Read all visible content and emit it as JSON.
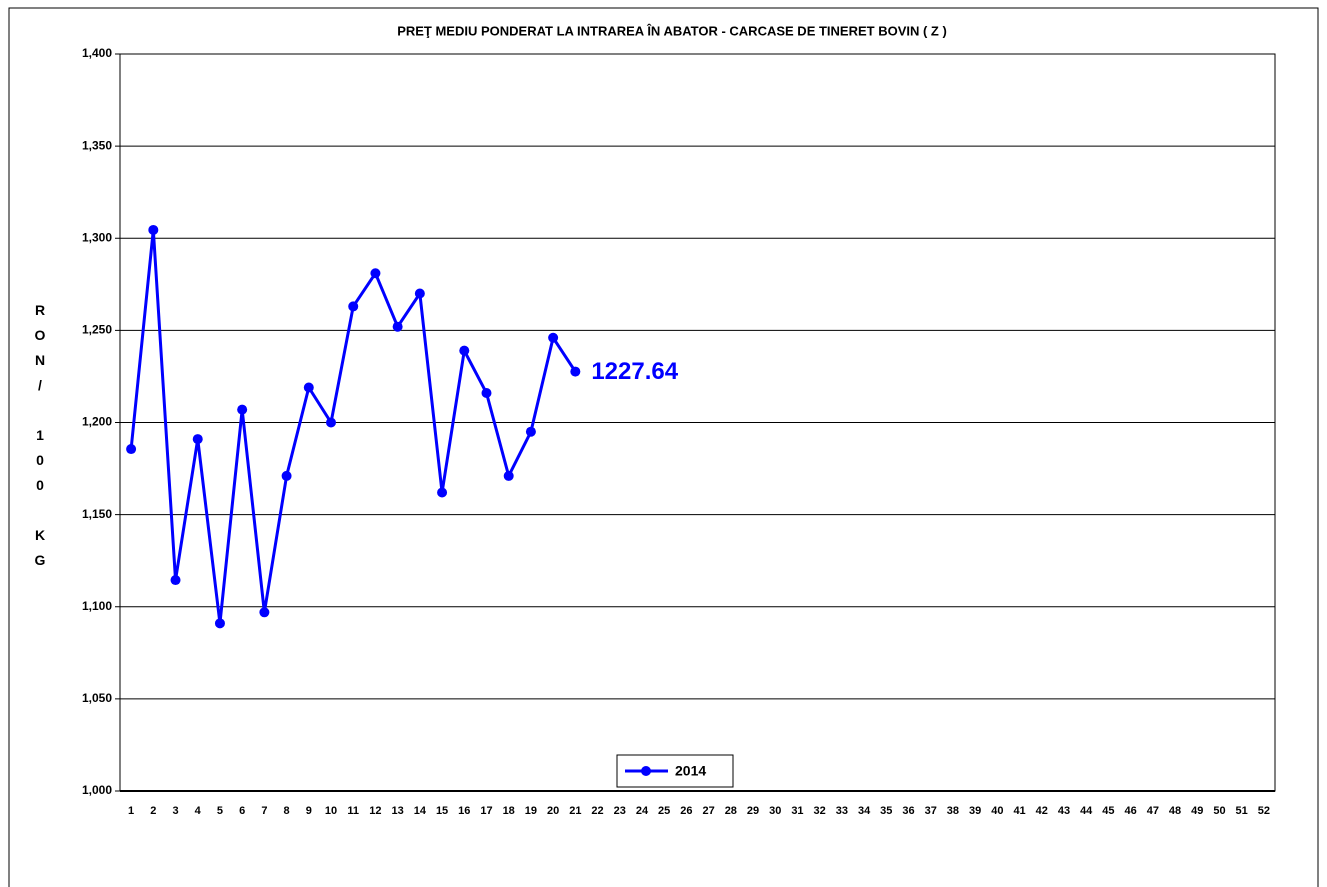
{
  "chart_data": {
    "type": "line",
    "title": "PREŢ MEDIU PONDERAT LA INTRAREA ÎN ABATOR - CARCASE DE TINERET BOVIN ( Z )",
    "y_label": "RON/ 100 KG",
    "categories": [
      "1",
      "2",
      "3",
      "4",
      "5",
      "6",
      "7",
      "8",
      "9",
      "10",
      "11",
      "12",
      "13",
      "14",
      "15",
      "16",
      "17",
      "18",
      "19",
      "20",
      "21",
      "22",
      "23",
      "24",
      "25",
      "26",
      "27",
      "28",
      "29",
      "30",
      "31",
      "32",
      "33",
      "34",
      "35",
      "36",
      "37",
      "38",
      "39",
      "40",
      "41",
      "42",
      "43",
      "44",
      "45",
      "46",
      "47",
      "48",
      "49",
      "50",
      "51",
      "52"
    ],
    "series": [
      {
        "name": "2014",
        "color": "#0000ff",
        "values": [
          1185.6,
          1304.5,
          1114.5,
          1191,
          1091,
          1207,
          1097,
          1171,
          1219,
          1200,
          1263,
          1281,
          1252,
          1270,
          1162,
          1239,
          1216,
          1171,
          1195,
          1246,
          1227.64,
          null,
          null,
          null,
          null,
          null,
          null,
          null,
          null,
          null,
          null,
          null,
          null,
          null,
          null,
          null,
          null,
          null,
          null,
          null,
          null,
          null,
          null,
          null,
          null,
          null,
          null,
          null,
          null,
          null,
          null,
          null
        ],
        "value_labels": [
          null,
          null,
          null,
          null,
          null,
          null,
          null,
          null,
          null,
          null,
          null,
          null,
          null,
          null,
          null,
          null,
          null,
          null,
          null,
          null,
          "1227.64",
          null,
          null,
          null,
          null,
          null,
          null,
          null,
          null,
          null,
          null,
          null,
          null,
          null,
          null,
          null,
          null,
          null,
          null,
          null,
          null,
          null,
          null,
          null,
          null,
          null,
          null,
          null,
          null,
          null,
          null,
          null
        ]
      }
    ],
    "ylim": [
      1000,
      1400
    ],
    "yticks": [
      {
        "value": 1000,
        "label": "1,000"
      },
      {
        "value": 1050,
        "label": "1,050"
      },
      {
        "value": 1100,
        "label": "1,100"
      },
      {
        "value": 1150,
        "label": "1,150"
      },
      {
        "value": 1200,
        "label": "1,200"
      },
      {
        "value": 1250,
        "label": "1,250"
      },
      {
        "value": 1300,
        "label": "1,300"
      },
      {
        "value": 1350,
        "label": "1,350"
      },
      {
        "value": 1400,
        "label": "1,400"
      }
    ],
    "grid": true,
    "legend": "bottom"
  }
}
